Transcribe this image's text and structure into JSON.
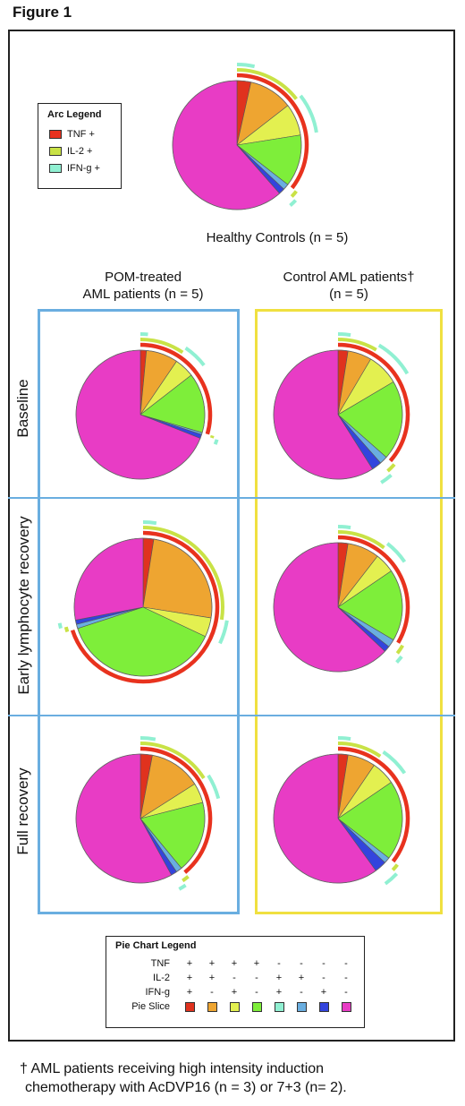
{
  "figure_title": "Figure 1",
  "arc_legend": {
    "title": "Arc Legend",
    "items": [
      {
        "label": "TNF +",
        "color": "#e8321e"
      },
      {
        "label": "IL-2 +",
        "color": "#c9e246"
      },
      {
        "label": "IFN-g +",
        "color": "#90f0d2"
      }
    ]
  },
  "labels": {
    "healthy": "Healthy Controls (n = 5)",
    "pom_line1": "POM-treated",
    "pom_line2": "AML patients (n = 5)",
    "ctrl_line1": "Control AML patients†",
    "ctrl_line2": "(n = 5)",
    "row_baseline": "Baseline",
    "row_early": "Early lymphocyte recovery",
    "row_full": "Full recovery"
  },
  "colors": {
    "pom_box": "#6aaee0",
    "ctrl_box": "#f0e040",
    "slices": [
      "#e0321e",
      "#eea531",
      "#e3f050",
      "#7eee3a",
      "#90f0d2",
      "#6aaee0",
      "#3344dd",
      "#e83cc5"
    ]
  },
  "pie_legend": {
    "title": "Pie Chart Legend",
    "rows": [
      {
        "label": "TNF",
        "values": [
          "+",
          "+",
          "+",
          "+",
          "-",
          "-",
          "-",
          "-"
        ]
      },
      {
        "label": "IL-2",
        "values": [
          "+",
          "+",
          "-",
          "-",
          "+",
          "+",
          "-",
          "-"
        ]
      },
      {
        "label": "IFN-g",
        "values": [
          "+",
          "-",
          "+",
          "-",
          "+",
          "-",
          "+",
          "-"
        ]
      }
    ],
    "slice_row_label": "Pie Slice"
  },
  "footnote": {
    "line1": "† AML patients receiving high intensity induction",
    "line2": "chemotherapy with AcDVP16 (n = 3) or 7+3 (n= 2)."
  },
  "chart_data": [
    {
      "type": "pie",
      "title": "Healthy Controls (n = 5)",
      "categories": [
        "TNF+ IL-2+ IFN-g+",
        "TNF+ IL-2+",
        "TNF+ IFN-g+",
        "TNF+",
        "IL-2+ IFN-g+",
        "IL-2+",
        "IFN-g+",
        "None"
      ],
      "values": [
        3.5,
        11,
        8,
        13,
        0,
        1.5,
        1.5,
        61.5
      ]
    },
    {
      "type": "pie",
      "group": "POM-treated AML patients (n = 5)",
      "stage": "Baseline",
      "categories": [
        "TNF+ IL-2+ IFN-g+",
        "TNF+ IL-2+",
        "TNF+ IFN-g+",
        "TNF+",
        "IL-2+ IFN-g+",
        "IL-2+",
        "IFN-g+",
        "None"
      ],
      "values": [
        1.5,
        8,
        5,
        15,
        0,
        0.5,
        1,
        69
      ]
    },
    {
      "type": "pie",
      "group": "Control AML patients† (n = 5)",
      "stage": "Baseline",
      "categories": [
        "TNF+ IL-2+ IFN-g+",
        "TNF+ IL-2+",
        "TNF+ IFN-g+",
        "TNF+",
        "IL-2+ IFN-g+",
        "IL-2+",
        "IFN-g+",
        "None"
      ],
      "values": [
        2.5,
        6,
        8,
        20,
        0,
        2,
        2.5,
        59
      ]
    },
    {
      "type": "pie",
      "group": "POM-treated AML patients (n = 5)",
      "stage": "Early lymphocyte recovery",
      "categories": [
        "TNF+ IL-2+ IFN-g+",
        "TNF+ IL-2+",
        "TNF+ IFN-g+",
        "TNF+",
        "IL-2+ IFN-g+",
        "IL-2+",
        "IFN-g+",
        "None"
      ],
      "values": [
        2.5,
        25,
        4.5,
        38,
        0,
        1,
        1,
        28
      ]
    },
    {
      "type": "pie",
      "group": "Control AML patients† (n = 5)",
      "stage": "Early lymphocyte recovery",
      "categories": [
        "TNF+ IL-2+ IFN-g+",
        "TNF+ IL-2+",
        "TNF+ IFN-g+",
        "TNF+",
        "IL-2+ IFN-g+",
        "IL-2+",
        "IFN-g+",
        "None"
      ],
      "values": [
        2.5,
        8,
        5,
        18,
        0,
        2,
        1.5,
        63
      ]
    },
    {
      "type": "pie",
      "group": "POM-treated AML patients (n = 5)",
      "stage": "Full recovery",
      "categories": [
        "TNF+ IL-2+ IFN-g+",
        "TNF+ IL-2+",
        "TNF+ IFN-g+",
        "TNF+",
        "IL-2+ IFN-g+",
        "IL-2+",
        "IFN-g+",
        "None"
      ],
      "values": [
        3,
        13,
        5,
        18,
        0,
        1.5,
        1.5,
        58
      ]
    },
    {
      "type": "pie",
      "group": "Control AML patients† (n = 5)",
      "stage": "Full recovery",
      "categories": [
        "TNF+ IL-2+ IFN-g+",
        "TNF+ IL-2+",
        "TNF+ IFN-g+",
        "TNF+",
        "IL-2+ IFN-g+",
        "IL-2+",
        "IFN-g+",
        "None"
      ],
      "values": [
        2.5,
        7,
        6,
        20,
        0,
        1.5,
        3,
        60
      ]
    }
  ]
}
